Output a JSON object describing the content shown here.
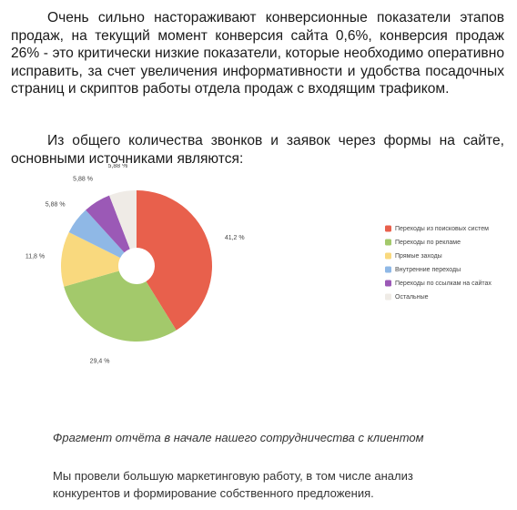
{
  "paragraphs": [
    "Очень сильно настораживают конверсионные показатели этапов продаж, на текущий момент конверсия сайта 0,6%, конверсия продаж 26% - это критически низкие показатели, которые необходимо оперативно исправить, за счет увеличения информативности и удобства посадочных страниц и скриптов работы отдела продаж с входящим трафиком.",
    "Из общего количества звонков и заявок через формы на сайте, основными источниками являются:"
  ],
  "chart_data": {
    "type": "pie",
    "categories": [
      "Переходы из поисковых систем",
      "Переходы по рекламе",
      "Прямые заходы",
      "Внутренние переходы",
      "Переходы по ссылкам на сайтах",
      "Остальные"
    ],
    "values": [
      41.2,
      29.4,
      11.8,
      5.88,
      5.88,
      5.88
    ],
    "value_labels": [
      "41,2 %",
      "29,4 %",
      "11,8 %",
      "5,88 %",
      "5,88 %",
      "5,88 %"
    ],
    "colors": [
      "#e8604c",
      "#a3c96b",
      "#f9d97e",
      "#8fb8e6",
      "#9b59b6",
      "#efebe6"
    ],
    "legend": "right"
  },
  "caption": "Фрагмент отчёта в начале нашего сотрудничества с клиентом",
  "body": "Мы провели большую маркетинговую работу, в том числе анализ конкурентов и формирование собственного предложения."
}
